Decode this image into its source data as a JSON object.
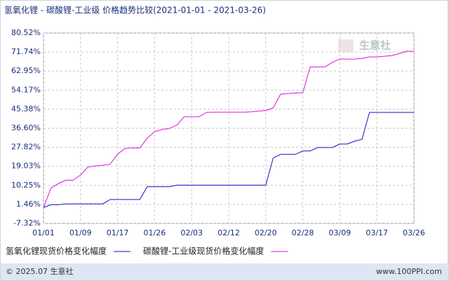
{
  "chart_data": {
    "type": "line",
    "title": "氢氧化锂 - 碳酸锂-工业级 价格趋势比较(2021-01-01 - 2021-03-26)",
    "categories": [
      "01/01",
      null,
      null,
      null,
      null,
      "01/09",
      null,
      null,
      null,
      null,
      "01/17",
      null,
      null,
      null,
      null,
      "01/26",
      null,
      null,
      null,
      null,
      "02/03",
      null,
      null,
      null,
      null,
      "02/12",
      null,
      null,
      null,
      null,
      "02/20",
      null,
      null,
      null,
      null,
      "02/28",
      null,
      null,
      null,
      null,
      "03/09",
      null,
      null,
      null,
      null,
      "03/17",
      null,
      null,
      null,
      null,
      "03/26"
    ],
    "series": [
      {
        "name": "氢氧化锂现货价格变化幅度",
        "color": "#1010c8",
        "values": [
          0,
          1.3,
          1.3,
          1.7,
          1.7,
          1.7,
          1.7,
          1.7,
          1.7,
          3.7,
          3.7,
          3.7,
          3.7,
          3.7,
          9.6,
          9.6,
          9.6,
          9.6,
          10.3,
          10.3,
          10.3,
          10.3,
          10.3,
          10.3,
          10.3,
          10.3,
          10.3,
          10.3,
          10.3,
          10.3,
          10.3,
          22.9,
          24.5,
          24.5,
          24.5,
          26.1,
          26.1,
          27.7,
          27.7,
          27.7,
          29.3,
          29.3,
          30.6,
          31.5,
          43.9,
          43.9,
          43.9,
          43.9,
          43.9,
          43.9,
          43.9
        ]
      },
      {
        "name": "碳酸锂-工业级现货价格变化幅度",
        "color": "#e010e0",
        "values": [
          0,
          9.0,
          11,
          12.6,
          12.6,
          15,
          18.7,
          19.2,
          19.5,
          20,
          24.6,
          27.3,
          27.5,
          27.5,
          32,
          35,
          36,
          36.5,
          38,
          41.9,
          41.9,
          41.9,
          43.9,
          44,
          44,
          44,
          44,
          44,
          44.2,
          44.5,
          44.7,
          46,
          52.3,
          52.6,
          52.8,
          53,
          64.9,
          64.9,
          64.9,
          67,
          68.5,
          68.5,
          68.5,
          68.8,
          69.5,
          69.5,
          69.8,
          70.1,
          71,
          72.1,
          72.1
        ]
      }
    ],
    "ylim": [
      -7.32,
      80.52
    ],
    "yticks": [
      {
        "value": -7.32,
        "label": "-7.32%"
      },
      {
        "value": 1.46,
        "label": "1.46%"
      },
      {
        "value": 10.25,
        "label": "10.25%"
      },
      {
        "value": 19.03,
        "label": "19.03%"
      },
      {
        "value": 27.82,
        "label": "27.82%"
      },
      {
        "value": 36.6,
        "label": "36.60%"
      },
      {
        "value": 45.38,
        "label": "45.38%"
      },
      {
        "value": 54.17,
        "label": "54.17%"
      },
      {
        "value": 62.95,
        "label": "62.95%"
      },
      {
        "value": 71.74,
        "label": "71.74%"
      },
      {
        "value": 80.52,
        "label": "80.52%"
      }
    ],
    "grid": true,
    "watermark": "生意社",
    "footer_left": "© 2025.07 生意社",
    "footer_right": "www.100PPI.com"
  }
}
